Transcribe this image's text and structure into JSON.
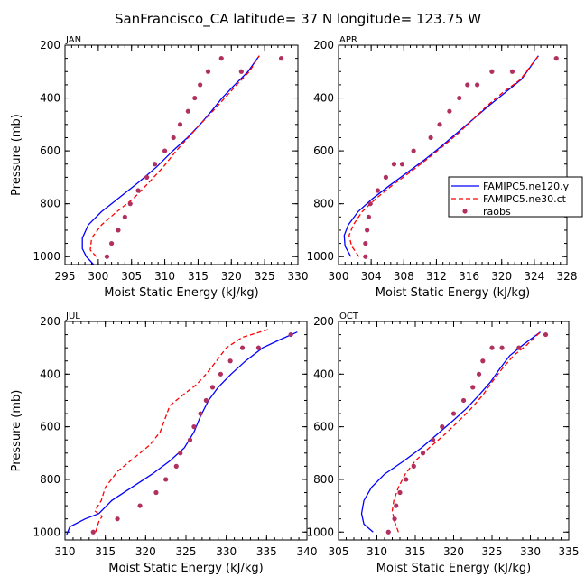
{
  "figure": {
    "title": "SanFrancisco_CA  latitude= 37 N longitude= 123.75 W"
  },
  "colors": {
    "model_hi": "#0000ff",
    "model_lo": "#ff0000",
    "raobs": "#b03060",
    "axis": "#000000"
  },
  "chart_data": [
    {
      "type": "line",
      "panel_label": "JAN",
      "xlabel": "Moist Static Energy (kJ/kg)",
      "ylabel": "Pressure (mb)",
      "xlim": [
        295,
        330
      ],
      "ylim": [
        1030,
        200
      ],
      "xticks": [
        295,
        300,
        305,
        310,
        315,
        320,
        325,
        330
      ],
      "yticks": [
        200,
        400,
        600,
        800,
        1000
      ],
      "grid": false,
      "series": [
        {
          "name": "FAMIPC5.ne120.y",
          "style": "solid",
          "color": "model_hi",
          "x": [
            299.3,
            298.2,
            297.6,
            297.6,
            298.5,
            300.5,
            303.0,
            306.0,
            308.8,
            311.2,
            313.4,
            315.3,
            317.0,
            318.6,
            320.5,
            322.5,
            324.2
          ],
          "y": [
            1030,
            1000,
            970,
            930,
            880,
            830,
            780,
            720,
            660,
            600,
            550,
            500,
            450,
            400,
            350,
            300,
            240
          ]
        },
        {
          "name": "FAMIPC5.ne30.ct",
          "style": "dashed",
          "color": "model_lo",
          "x": [
            299.7,
            298.8,
            299.0,
            300.5,
            302.8,
            305.3,
            307.6,
            309.8,
            311.7,
            313.5,
            315.3,
            317.2,
            319.0,
            320.8,
            322.7,
            324.2
          ],
          "y": [
            1000,
            975,
            930,
            880,
            830,
            780,
            720,
            660,
            600,
            550,
            500,
            450,
            400,
            350,
            300,
            240
          ]
        },
        {
          "name": "raobs",
          "style": "dots",
          "color": "raobs",
          "x": [
            301.3,
            302.0,
            303.0,
            304.0,
            304.8,
            306.0,
            307.3,
            308.5,
            310.0,
            311.3,
            312.3,
            313.5,
            314.5,
            315.3,
            316.5,
            318.5,
            321.5,
            327.5
          ],
          "y": [
            1000,
            950,
            900,
            850,
            800,
            750,
            700,
            650,
            600,
            550,
            500,
            450,
            400,
            350,
            300,
            250,
            300,
            250
          ]
        }
      ]
    },
    {
      "type": "line",
      "panel_label": "APR",
      "xlabel": "Moist Static Energy (kJ/kg)",
      "ylabel": "",
      "xlim": [
        300,
        328
      ],
      "ylim": [
        1030,
        200
      ],
      "xticks": [
        300,
        304,
        308,
        312,
        316,
        320,
        324,
        328
      ],
      "yticks": [
        200,
        400,
        600,
        800,
        1000
      ],
      "grid": false,
      "series": [
        {
          "name": "FAMIPC5.ne120.y",
          "style": "solid",
          "color": "model_hi",
          "x": [
            301.5,
            300.8,
            300.7,
            301.2,
            302.4,
            304.2,
            306.3,
            308.5,
            310.7,
            312.7,
            314.6,
            316.5,
            318.4,
            320.4,
            322.4,
            324.5
          ],
          "y": [
            1000,
            960,
            920,
            880,
            830,
            780,
            730,
            680,
            630,
            580,
            530,
            480,
            430,
            380,
            330,
            240
          ]
        },
        {
          "name": "FAMIPC5.ne30.ct",
          "style": "dashed",
          "color": "model_lo",
          "x": [
            302.5,
            301.6,
            301.3,
            301.8,
            302.9,
            304.6,
            306.6,
            308.8,
            310.9,
            312.9,
            314.8,
            316.5,
            318.2,
            320.1,
            322.3,
            324.5
          ],
          "y": [
            1000,
            960,
            920,
            880,
            830,
            780,
            730,
            680,
            630,
            580,
            530,
            480,
            430,
            380,
            330,
            240
          ]
        },
        {
          "name": "raobs",
          "style": "dots",
          "color": "raobs",
          "x": [
            303.3,
            303.3,
            303.5,
            303.7,
            303.9,
            304.8,
            305.8,
            306.8,
            307.8,
            309.2,
            311.3,
            312.4,
            313.6,
            314.8,
            315.8,
            317.0,
            318.8,
            321.3,
            326.7
          ],
          "y": [
            1000,
            950,
            900,
            850,
            800,
            750,
            700,
            650,
            650,
            600,
            550,
            500,
            450,
            400,
            350,
            350,
            300,
            300,
            250
          ]
        }
      ]
    },
    {
      "type": "line",
      "panel_label": "JUL",
      "xlabel": "Moist Static Energy (kJ/kg)",
      "ylabel": "Pressure (mb)",
      "xlim": [
        310,
        340
      ],
      "ylim": [
        1030,
        200
      ],
      "xticks": [
        310,
        315,
        320,
        325,
        330,
        335,
        340
      ],
      "yticks": [
        200,
        400,
        600,
        800,
        1000
      ],
      "grid": false,
      "series": [
        {
          "name": "FAMIPC5.ne120.y",
          "style": "solid",
          "color": "model_hi",
          "x": [
            310.2,
            310.6,
            312.5,
            314.2,
            315.8,
            318.3,
            320.8,
            323.0,
            324.8,
            326.0,
            326.8,
            327.8,
            329.0,
            330.6,
            332.4,
            334.5,
            336.6,
            338.8
          ],
          "y": [
            1010,
            980,
            950,
            930,
            880,
            830,
            780,
            730,
            680,
            620,
            560,
            500,
            450,
            400,
            350,
            300,
            270,
            240
          ]
        },
        {
          "name": "FAMIPC5.ne30.ct",
          "style": "dashed",
          "color": "model_lo",
          "x": [
            313.8,
            314.2,
            314.6,
            313.7,
            314.5,
            315.0,
            316.5,
            318.5,
            320.5,
            321.8,
            322.4,
            323.0,
            324.6,
            326.3,
            327.5,
            328.8,
            330.0,
            332.0,
            335.3
          ],
          "y": [
            1000,
            960,
            940,
            920,
            880,
            830,
            770,
            720,
            670,
            620,
            570,
            520,
            480,
            440,
            400,
            350,
            300,
            260,
            230
          ]
        },
        {
          "name": "raobs",
          "style": "dots",
          "color": "raobs",
          "x": [
            313.5,
            316.5,
            319.3,
            321.3,
            322.5,
            323.8,
            324.3,
            325.5,
            326.0,
            326.8,
            327.5,
            328.3,
            329.3,
            330.5,
            332.0,
            334.0,
            338.0
          ],
          "y": [
            1000,
            950,
            900,
            850,
            800,
            750,
            700,
            650,
            600,
            550,
            500,
            450,
            400,
            350,
            300,
            300,
            250
          ]
        }
      ]
    },
    {
      "type": "line",
      "panel_label": "OCT",
      "xlabel": "Moist Static Energy (kJ/kg)",
      "ylabel": "",
      "xlim": [
        305,
        335
      ],
      "ylim": [
        1030,
        200
      ],
      "xticks": [
        305,
        310,
        315,
        320,
        325,
        330,
        335
      ],
      "yticks": [
        200,
        400,
        600,
        800,
        1000
      ],
      "grid": false,
      "series": [
        {
          "name": "FAMIPC5.ne120.y",
          "style": "solid",
          "color": "model_hi",
          "x": [
            309.5,
            308.3,
            308.0,
            308.3,
            309.3,
            311.0,
            313.5,
            315.8,
            317.8,
            319.8,
            321.7,
            323.3,
            324.8,
            326.0,
            327.3,
            329.0,
            331.3
          ],
          "y": [
            1000,
            970,
            930,
            880,
            830,
            780,
            730,
            680,
            630,
            580,
            530,
            480,
            430,
            380,
            330,
            290,
            240
          ]
        },
        {
          "name": "FAMIPC5.ne30.ct",
          "style": "dashed",
          "color": "model_lo",
          "x": [
            312.8,
            312.3,
            312.0,
            312.2,
            312.8,
            313.7,
            315.0,
            316.8,
            318.8,
            320.6,
            322.3,
            323.8,
            325.0,
            326.3,
            327.8,
            329.5,
            331.3
          ],
          "y": [
            1000,
            960,
            920,
            880,
            830,
            780,
            730,
            680,
            630,
            580,
            530,
            480,
            430,
            380,
            330,
            290,
            240
          ]
        },
        {
          "name": "raobs",
          "style": "dots",
          "color": "raobs",
          "x": [
            311.5,
            312.3,
            312.5,
            313.0,
            313.8,
            314.8,
            316.0,
            317.3,
            318.5,
            320.0,
            321.3,
            322.5,
            323.3,
            323.8,
            325.0,
            326.3,
            328.5,
            332.0
          ],
          "y": [
            1000,
            950,
            900,
            850,
            800,
            750,
            700,
            650,
            600,
            550,
            500,
            450,
            400,
            350,
            300,
            300,
            300,
            250
          ]
        }
      ]
    }
  ],
  "legend": {
    "placement": "right of APR panel",
    "entries": [
      {
        "label": "FAMIPC5.ne120.y",
        "style": "solid",
        "color": "model_hi"
      },
      {
        "label": "FAMIPC5.ne30.ct",
        "style": "dashed",
        "color": "model_lo"
      },
      {
        "label": "raobs",
        "style": "dots",
        "color": "raobs"
      }
    ]
  }
}
